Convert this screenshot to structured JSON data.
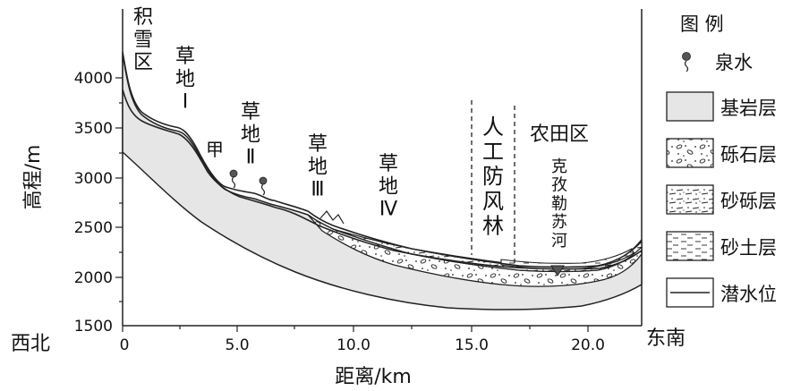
{
  "figure": {
    "y_axis_title": "高程/m",
    "x_axis_title": "距离/km",
    "y_ticks": [
      "4000",
      "3500",
      "3000",
      "2500",
      "2000",
      "1500"
    ],
    "x_ticks": [
      "0",
      "5.0",
      "10.0",
      "15.0",
      "20.0"
    ],
    "direction_left": "西北",
    "direction_right": "东南"
  },
  "zones": {
    "snow": "积雪区",
    "grass1": "草地Ⅰ",
    "grass2": "草地Ⅱ",
    "grass3": "草地Ⅲ",
    "grass4": "草地Ⅳ",
    "point_jia": "甲",
    "windbreak": "人工防风林",
    "farmland": "农田区",
    "river": "克孜勒苏河"
  },
  "legend": {
    "title": "图 例",
    "items": [
      {
        "key": "spring",
        "label": "泉水"
      },
      {
        "key": "bedrock",
        "label": "基岩层"
      },
      {
        "key": "gravel",
        "label": "砾石层"
      },
      {
        "key": "sandy_gravel",
        "label": "砂砾层"
      },
      {
        "key": "sandy_soil",
        "label": "砂土层"
      },
      {
        "key": "water_table",
        "label": "潜水位"
      }
    ]
  },
  "colors": {
    "bedrock_fill": "#e6e6e6",
    "line": "#222222"
  }
}
